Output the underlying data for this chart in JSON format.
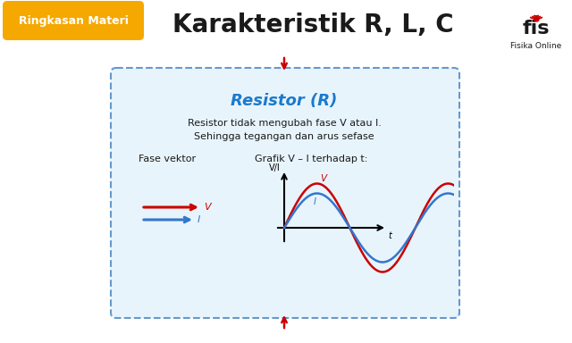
{
  "bg_color": "#ffffff",
  "title": "Karakteristik R, L, C",
  "title_color": "#1a1a1a",
  "title_fontsize": 20,
  "banner_text": "Ringkasan Materi",
  "banner_bg": "#f5a800",
  "banner_text_color": "#ffffff",
  "banner_fontsize": 9,
  "box_bg": "#e8f4fc",
  "box_border": "#6699cc",
  "resistor_title": "Resistor (R)",
  "resistor_title_color": "#1a7acc",
  "resistor_fontsize": 13,
  "desc1": "Resistor tidak mengubah fase V atau I.",
  "desc2": "Sehingga tegangan dan arus sefase",
  "desc_fontsize": 8,
  "fase_label": "Fase vektor",
  "grafik_label": "Grafik V – I terhadap t:",
  "sublabel_fontsize": 8,
  "vi_axis_label": "V/I",
  "t_axis_label": "t",
  "V_label": "V",
  "I_label": "I",
  "V_color": "#cc0000",
  "I_color": "#3377cc",
  "arrow_color": "#cc0000",
  "fis_text": "Fisika Online",
  "fis_text_color": "#1a1a1a",
  "fis_fontsize": 6.5
}
